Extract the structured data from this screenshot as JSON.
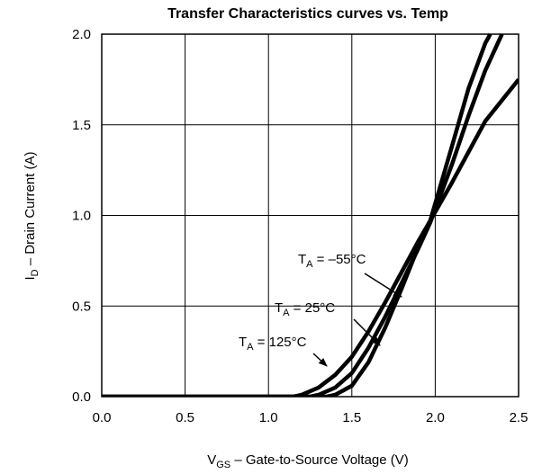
{
  "chart_data": {
    "type": "line",
    "title": "Transfer Characteristics curves vs. Temp",
    "xlabel": {
      "main": "V",
      "sub": "GS",
      "rest": " – Gate-to-Source Voltage (V)"
    },
    "ylabel": {
      "main": "I",
      "sub": "D",
      "rest": " – Drain Current (A)"
    },
    "xlim": [
      0,
      2.5
    ],
    "ylim": [
      0,
      2.0
    ],
    "x_ticks": [
      "0.0",
      "0.5",
      "1.0",
      "1.5",
      "2.0",
      "2.5"
    ],
    "y_ticks": [
      "0.0",
      "0.5",
      "1.0",
      "1.5",
      "2.0"
    ],
    "grid": true,
    "series": [
      {
        "name": "TA = –55°C",
        "label_main": "T",
        "label_sub": "A",
        "label_rest": " = –55°C",
        "x": [
          0,
          1.1,
          1.15,
          1.2,
          1.3,
          1.4,
          1.5,
          1.6,
          1.7,
          1.8,
          1.9,
          1.97,
          2.1,
          2.2,
          2.3,
          2.5
        ],
        "y": [
          0,
          0,
          0,
          0.01,
          0.05,
          0.12,
          0.22,
          0.36,
          0.52,
          0.69,
          0.86,
          0.97,
          1.18,
          1.35,
          1.52,
          1.75
        ]
      },
      {
        "name": "TA = 25°C",
        "label_main": "T",
        "label_sub": "A",
        "label_rest": " = 25°C",
        "x": [
          0,
          1.2,
          1.25,
          1.3,
          1.4,
          1.5,
          1.6,
          1.7,
          1.8,
          1.9,
          1.97,
          2.1,
          2.2,
          2.3,
          2.4
        ],
        "y": [
          0,
          0,
          0,
          0.01,
          0.05,
          0.13,
          0.27,
          0.44,
          0.63,
          0.82,
          0.96,
          1.28,
          1.55,
          1.8,
          2.0
        ]
      },
      {
        "name": "TA = 125°C",
        "label_main": "T",
        "label_sub": "A",
        "label_rest": " = 125°C",
        "x": [
          0,
          1.35,
          1.4,
          1.5,
          1.6,
          1.7,
          1.8,
          1.9,
          1.97,
          2.1,
          2.2,
          2.3,
          2.33
        ],
        "y": [
          0,
          0,
          0.01,
          0.06,
          0.19,
          0.38,
          0.6,
          0.83,
          0.97,
          1.38,
          1.7,
          1.95,
          2.0
        ]
      }
    ]
  }
}
